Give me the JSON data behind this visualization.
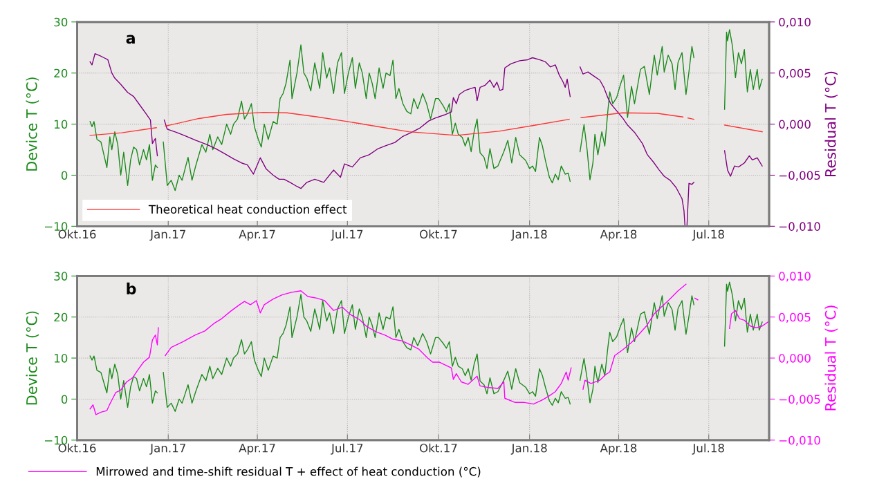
{
  "chart_data": [
    {
      "type": "line",
      "ylabel": "Device T (°C)",
      "y2label": "Residual T (°C)",
      "annotations": [
        "a"
      ],
      "grid": true,
      "legend": "bottom left",
      "marker": "none",
      "line_style": "solid",
      "xlim": [
        "2016-10-01",
        "2018-08-31"
      ],
      "xticks": [
        {
          "value": "2016-10-01",
          "label": "Okt.16"
        },
        {
          "value": "2017-01-01",
          "label": "Jan.17"
        },
        {
          "value": "2017-04-01",
          "label": "Apr.17"
        },
        {
          "value": "2017-07-01",
          "label": "Jul.17"
        },
        {
          "value": "2017-10-01",
          "label": "Okt.17"
        },
        {
          "value": "2018-01-01",
          "label": "Jan.18"
        },
        {
          "value": "2018-04-01",
          "label": "Apr.18"
        },
        {
          "value": "2018-07-01",
          "label": "Jul.18"
        }
      ],
      "ylim": [
        -10,
        30
      ],
      "yticks": [
        {
          "value": -10,
          "label": "−10"
        },
        0,
        10,
        20,
        30
      ],
      "y2lim": [
        -0.01,
        0.01
      ],
      "y2ticks": [
        {
          "value": -0.01,
          "label": "−0,010"
        },
        {
          "value": -0.005,
          "label": "−0,005"
        },
        {
          "value": 0,
          "label": "0,000"
        },
        {
          "value": 0.005,
          "label": "0,005"
        },
        {
          "value": 0.01,
          "label": "0,010"
        }
      ],
      "series": [
        {
          "color": "#1a8a1a",
          "x": [
            "2016-10-14",
            "2016-10-16",
            "2016-10-18",
            "2016-10-21",
            "2016-10-25",
            "2016-10-28",
            "2016-10-31",
            "2016-11-03",
            "2016-11-05",
            "2016-11-08",
            "2016-11-11",
            "2016-11-14",
            "2016-11-17",
            "2016-11-21",
            "2016-11-24",
            "2016-11-27",
            "2016-11-30",
            "2016-12-03",
            "2016-12-07",
            "2016-12-10",
            "2016-12-13",
            "2016-12-16",
            "2016-12-19",
            "2016-12-21",
            "2016-12-24",
            "2016-12-27",
            "2016-12-31",
            "2017-01-04",
            "2017-01-08",
            "2017-01-12",
            "2017-01-15",
            "2017-01-21",
            "2017-01-25",
            "2017-01-29",
            "2017-02-04",
            "2017-02-08",
            "2017-02-12",
            "2017-02-15",
            "2017-02-20",
            "2017-02-24",
            "2017-03-01",
            "2017-03-05",
            "2017-03-08",
            "2017-03-12",
            "2017-03-16",
            "2017-03-19",
            "2017-03-22",
            "2017-03-26",
            "2017-03-29",
            "2017-04-02",
            "2017-04-05",
            "2017-04-08",
            "2017-04-12",
            "2017-04-17",
            "2017-04-21",
            "2017-04-24",
            "2017-04-27",
            "2017-04-30",
            "2017-05-04",
            "2017-05-06",
            "2017-05-11",
            "2017-05-15",
            "2017-05-18",
            "2017-05-21",
            "2017-05-25",
            "2017-05-29",
            "2017-06-03",
            "2017-06-06",
            "2017-06-10",
            "2017-06-13",
            "2017-06-17",
            "2017-06-21",
            "2017-06-25",
            "2017-06-28",
            "2017-07-02",
            "2017-07-06",
            "2017-07-09",
            "2017-07-13",
            "2017-07-16",
            "2017-07-20",
            "2017-07-23",
            "2017-07-26",
            "2017-07-29",
            "2017-08-02",
            "2017-08-06",
            "2017-08-09",
            "2017-08-13",
            "2017-08-16",
            "2017-08-19",
            "2017-08-22",
            "2017-08-26",
            "2017-08-30",
            "2017-09-03",
            "2017-09-06",
            "2017-09-10",
            "2017-09-15",
            "2017-09-19",
            "2017-09-23",
            "2017-09-28",
            "2017-10-01",
            "2017-10-06",
            "2017-10-09",
            "2017-10-12",
            "2017-10-15",
            "2017-10-18",
            "2017-10-21",
            "2017-10-25",
            "2017-10-28",
            "2017-10-31",
            "2017-11-03",
            "2017-11-06",
            "2017-11-09",
            "2017-11-12",
            "2017-11-16",
            "2017-11-19",
            "2017-11-22",
            "2017-11-26",
            "2017-11-30",
            "2017-12-06",
            "2017-12-10",
            "2017-12-14",
            "2017-12-18",
            "2017-12-22",
            "2017-12-28",
            "2018-01-01",
            "2018-01-04",
            "2018-01-07",
            "2018-01-11",
            "2018-01-14",
            "2018-01-17",
            "2018-01-21",
            "2018-01-24",
            "2018-01-27",
            "2018-01-30",
            "2018-02-02",
            "2018-02-06",
            "2018-02-09",
            "2018-02-11",
            "2018-02-16",
            "2018-02-21",
            "2018-02-25",
            "2018-02-28",
            "2018-03-03",
            "2018-03-06",
            "2018-03-08",
            "2018-03-11",
            "2018-03-15",
            "2018-03-18",
            "2018-03-21",
            "2018-03-23",
            "2018-03-26",
            "2018-03-30",
            "2018-04-03",
            "2018-04-06",
            "2018-04-10",
            "2018-04-14",
            "2018-04-17",
            "2018-04-23",
            "2018-04-27",
            "2018-05-02",
            "2018-05-07",
            "2018-05-10",
            "2018-05-15",
            "2018-05-17",
            "2018-05-21",
            "2018-05-25",
            "2018-05-28",
            "2018-05-31",
            "2018-06-04",
            "2018-06-08",
            "2018-06-11",
            "2018-06-14",
            "2018-06-16",
            "2018-07-01",
            "2018-07-17",
            "2018-07-19",
            "2018-07-20",
            "2018-07-22",
            "2018-07-25",
            "2018-07-28",
            "2018-07-31",
            "2018-08-03",
            "2018-08-06",
            "2018-08-09",
            "2018-08-12",
            "2018-08-15",
            "2018-08-19",
            "2018-08-21",
            "2018-08-24"
          ],
          "values": [
            10.5,
            9.5,
            10.5,
            7,
            6.5,
            4,
            1.5,
            7.5,
            5,
            8.5,
            6,
            0,
            4.5,
            -2,
            3,
            5.5,
            5,
            2,
            5,
            3,
            6,
            -1,
            2,
            1.5,
            null,
            6.5,
            -2,
            -1,
            -3,
            0,
            -1,
            3.5,
            -1,
            2,
            6,
            4.5,
            8,
            5,
            7.5,
            6,
            10,
            8,
            10,
            11,
            14.5,
            11,
            12,
            14,
            9.5,
            7,
            5.5,
            10,
            7,
            10.5,
            10,
            15,
            16,
            18,
            22.5,
            15,
            20,
            25.5,
            20,
            19,
            16.5,
            22,
            17,
            24,
            19,
            21,
            16,
            22,
            24,
            16,
            20,
            23,
            17,
            22,
            20,
            15,
            20,
            18,
            15,
            21,
            17,
            20,
            19.5,
            22.5,
            15,
            17,
            14,
            12.5,
            12,
            15,
            13,
            16,
            14,
            11,
            15,
            15,
            13.5,
            12.4,
            14,
            8,
            10.2,
            8,
            7.4,
            5.7,
            7.4,
            4.6,
            8.5,
            11,
            4.4,
            3.5,
            1.3,
            5.2,
            1.3,
            1.8,
            4.6,
            6.8,
            2.4,
            7.4,
            4,
            2.9,
            1.3,
            1.8,
            0.7,
            7.4,
            5.7,
            2.9,
            -0.4,
            -1.5,
            0.2,
            -0.9,
            1.8,
            0.2,
            0.4,
            -1.2,
            null,
            4.6,
            9.9,
            5.2,
            -0.9,
            2.4,
            8,
            4,
            8.5,
            5.7,
            12.4,
            16.3,
            14,
            15.2,
            17.9,
            19.6,
            11.3,
            17.4,
            14,
            20.7,
            21.3,
            15.8,
            23.5,
            19.6,
            25.2,
            20.2,
            23.5,
            21.8,
            16.8,
            22.1,
            24,
            15.8,
            20.2,
            25.2,
            23,
            null,
            12.9,
            28,
            26.3,
            28.5,
            25.2,
            19.1,
            24,
            21.8,
            24.6,
            16.3,
            20.7,
            16.8,
            20.7,
            16.8,
            18.8
          ]
        },
        {
          "color": "#800080",
          "axis": "y2",
          "x": [
            "2016-10-14",
            "2016-10-16",
            "2016-10-19",
            "2016-10-24",
            "2016-10-28",
            "2016-11-01",
            "2016-11-05",
            "2016-11-08",
            "2016-11-14",
            "2016-11-21",
            "2016-11-27",
            "2016-12-03",
            "2016-12-09",
            "2016-12-14",
            "2016-12-16",
            "2016-12-19",
            "2016-12-21",
            "2016-12-24",
            "2016-12-28",
            "2016-12-31",
            "2017-01-09",
            "2017-01-17",
            "2017-01-29",
            "2017-02-09",
            "2017-02-18",
            "2017-02-27",
            "2017-03-08",
            "2017-03-16",
            "2017-03-22",
            "2017-03-28",
            "2017-04-04",
            "2017-04-10",
            "2017-04-17",
            "2017-04-23",
            "2017-04-28",
            "2017-05-04",
            "2017-05-11",
            "2017-05-15",
            "2017-05-21",
            "2017-05-29",
            "2017-06-07",
            "2017-06-17",
            "2017-06-24",
            "2017-06-28",
            "2017-07-06",
            "2017-07-14",
            "2017-07-23",
            "2017-08-01",
            "2017-08-09",
            "2017-08-18",
            "2017-08-26",
            "2017-09-04",
            "2017-09-12",
            "2017-09-21",
            "2017-09-28",
            "2017-10-07",
            "2017-10-14",
            "2017-10-16",
            "2017-10-19",
            "2017-10-22",
            "2017-10-28",
            "2017-11-03",
            "2017-11-07",
            "2017-11-09",
            "2017-11-12",
            "2017-11-17",
            "2017-11-22",
            "2017-11-26",
            "2017-11-29",
            "2017-12-02",
            "2017-12-05",
            "2017-12-07",
            "2017-12-13",
            "2017-12-22",
            "2017-12-30",
            "2018-01-04",
            "2018-01-11",
            "2018-01-17",
            "2018-01-22",
            "2018-01-27",
            "2018-01-31",
            "2018-02-04",
            "2018-02-06",
            "2018-02-08",
            "2018-02-11",
            "2018-02-16",
            "2018-02-21",
            "2018-02-24",
            "2018-03-01",
            "2018-03-07",
            "2018-03-13",
            "2018-03-17",
            "2018-03-21",
            "2018-03-24",
            "2018-03-30",
            "2018-04-05",
            "2018-04-10",
            "2018-04-17",
            "2018-04-25",
            "2018-04-30",
            "2018-05-06",
            "2018-05-12",
            "2018-05-17",
            "2018-05-23",
            "2018-05-29",
            "2018-06-04",
            "2018-06-06",
            "2018-06-07",
            "2018-06-09",
            "2018-06-11",
            "2018-06-14",
            "2018-06-16",
            "2018-07-01",
            "2018-07-17",
            "2018-07-20",
            "2018-07-23",
            "2018-07-27",
            "2018-07-31",
            "2018-08-06",
            "2018-08-11",
            "2018-08-14",
            "2018-08-19",
            "2018-08-24"
          ],
          "values": [
            0.0061,
            0.0058,
            0.0069,
            0.0067,
            0.0065,
            0.0063,
            0.005,
            0.0045,
            0.0039,
            0.0031,
            0.0027,
            0.0019,
            0.0011,
            0.0004,
            -0.0019,
            -0.0014,
            -0.0031,
            null,
            0.0004,
            -0.0005,
            -0.0008,
            -0.0011,
            -0.0016,
            -0.002,
            -0.0024,
            -0.0029,
            -0.0034,
            -0.0038,
            -0.004,
            -0.0049,
            -0.0033,
            -0.0044,
            -0.005,
            -0.0054,
            -0.0054,
            -0.0057,
            -0.0061,
            -0.0063,
            -0.0057,
            -0.0054,
            -0.0057,
            -0.0045,
            -0.0052,
            -0.0039,
            -0.0042,
            -0.0033,
            -0.003,
            -0.0024,
            -0.0021,
            -0.0018,
            -0.0012,
            -0.0008,
            -0.0004,
            0.0003,
            0.0006,
            0.0009,
            0.0012,
            0.0026,
            0.002,
            0.0029,
            0.0033,
            0.0035,
            0.0036,
            0.0023,
            0.0036,
            0.0038,
            0.0043,
            0.0036,
            0.0041,
            0.0033,
            0.0034,
            0.0055,
            0.0059,
            0.0062,
            0.0063,
            0.0065,
            0.0063,
            0.0061,
            0.0056,
            0.0058,
            0.0048,
            0.0041,
            0.0036,
            0.0044,
            0.0027,
            null,
            0.0056,
            0.0049,
            0.0051,
            0.0047,
            0.0043,
            0.0036,
            0.0026,
            0.002,
            0.0013,
            0.0006,
            -0.0001,
            -0.0008,
            -0.0019,
            -0.003,
            -0.0037,
            -0.0045,
            -0.0051,
            -0.0055,
            -0.0062,
            -0.0073,
            -0.0085,
            -0.01,
            -0.01,
            -0.0058,
            -0.0059,
            -0.0057,
            null,
            -0.0026,
            -0.0045,
            -0.0051,
            -0.0041,
            -0.0042,
            -0.0038,
            -0.0031,
            -0.0035,
            -0.0033,
            -0.0041
          ]
        },
        {
          "name": "Theoretical heat conduction effect",
          "color": "#ff3333",
          "axis": "y2",
          "x": [
            "2016-10-14",
            "2016-11-15",
            "2016-12-20",
            "2016-12-24",
            "2016-12-29",
            "2017-02-01",
            "2017-03-01",
            "2017-04-07",
            "2017-05-01",
            "2017-06-01",
            "2017-07-01",
            "2017-08-01",
            "2017-09-01",
            "2017-10-19",
            "2017-12-01",
            "2018-01-01",
            "2018-02-10",
            "2018-02-16",
            "2018-02-22",
            "2018-04-05",
            "2018-05-10",
            "2018-06-05",
            "2018-06-07",
            "2018-06-10",
            "2018-06-16",
            "2018-07-01",
            "2018-07-17",
            "2018-08-24"
          ],
          "values": [
            -0.0011,
            -0.00085,
            -0.00035,
            null,
            -0.0002,
            0.00055,
            0.00095,
            0.00115,
            0.0011,
            0.0007,
            0.00025,
            -0.00025,
            -0.00075,
            -0.0011,
            -0.0007,
            -0.0002,
            0.00047,
            null,
            0.00064,
            0.0011,
            0.00105,
            0.0007,
            null,
            0.0006,
            0.00047,
            null,
            -0.0001,
            -0.00075
          ]
        }
      ]
    },
    {
      "type": "line",
      "ylabel": "Device T (°C)",
      "y2label": "Residual T (°C)",
      "annotations": [
        "b"
      ],
      "grid": true,
      "legend": "bottom",
      "marker": "none",
      "line_style": "solid",
      "xlim": [
        "2016-10-01",
        "2018-08-31"
      ],
      "xticks": [
        {
          "value": "2016-10-01",
          "label": "Okt.16"
        },
        {
          "value": "2017-01-01",
          "label": "Jan.17"
        },
        {
          "value": "2017-04-01",
          "label": "Apr.17"
        },
        {
          "value": "2017-07-01",
          "label": "Jul.17"
        },
        {
          "value": "2017-10-01",
          "label": "Okt.17"
        },
        {
          "value": "2018-01-01",
          "label": "Jan.18"
        },
        {
          "value": "2018-04-01",
          "label": "Apr.18"
        },
        {
          "value": "2018-07-01",
          "label": "Jul.18"
        }
      ],
      "ylim": [
        -10,
        30
      ],
      "yticks": [
        {
          "value": -10,
          "label": "−10"
        },
        0,
        10,
        20,
        30
      ],
      "y2lim": [
        -0.01,
        0.01
      ],
      "y2ticks": [
        {
          "value": -0.01,
          "label": "−0,010"
        },
        {
          "value": -0.005,
          "label": "−0,005"
        },
        {
          "value": 0,
          "label": "0,000"
        },
        {
          "value": 0.005,
          "label": "0,005"
        },
        {
          "value": 0.01,
          "label": "0,010"
        }
      ],
      "series": [
        {
          "color": "#1a8a1a",
          "x": [
            "2016-10-14",
            "2016-10-16",
            "2016-10-18",
            "2016-10-21",
            "2016-10-25",
            "2016-10-28",
            "2016-10-31",
            "2016-11-03",
            "2016-11-05",
            "2016-11-08",
            "2016-11-11",
            "2016-11-14",
            "2016-11-17",
            "2016-11-21",
            "2016-11-24",
            "2016-11-27",
            "2016-11-30",
            "2016-12-03",
            "2016-12-07",
            "2016-12-10",
            "2016-12-13",
            "2016-12-16",
            "2016-12-19",
            "2016-12-21",
            "2016-12-24",
            "2016-12-27",
            "2016-12-31",
            "2017-01-04",
            "2017-01-08",
            "2017-01-12",
            "2017-01-15",
            "2017-01-21",
            "2017-01-25",
            "2017-01-29",
            "2017-02-04",
            "2017-02-08",
            "2017-02-12",
            "2017-02-15",
            "2017-02-20",
            "2017-02-24",
            "2017-03-01",
            "2017-03-05",
            "2017-03-08",
            "2017-03-12",
            "2017-03-16",
            "2017-03-19",
            "2017-03-22",
            "2017-03-26",
            "2017-03-29",
            "2017-04-02",
            "2017-04-05",
            "2017-04-08",
            "2017-04-12",
            "2017-04-17",
            "2017-04-21",
            "2017-04-24",
            "2017-04-27",
            "2017-04-30",
            "2017-05-04",
            "2017-05-06",
            "2017-05-11",
            "2017-05-15",
            "2017-05-18",
            "2017-05-21",
            "2017-05-25",
            "2017-05-29",
            "2017-06-03",
            "2017-06-06",
            "2017-06-10",
            "2017-06-13",
            "2017-06-17",
            "2017-06-21",
            "2017-06-25",
            "2017-06-28",
            "2017-07-02",
            "2017-07-06",
            "2017-07-09",
            "2017-07-13",
            "2017-07-16",
            "2017-07-20",
            "2017-07-23",
            "2017-07-26",
            "2017-07-29",
            "2017-08-02",
            "2017-08-06",
            "2017-08-09",
            "2017-08-13",
            "2017-08-16",
            "2017-08-19",
            "2017-08-22",
            "2017-08-26",
            "2017-08-30",
            "2017-09-03",
            "2017-09-06",
            "2017-09-10",
            "2017-09-15",
            "2017-09-19",
            "2017-09-23",
            "2017-09-28",
            "2017-10-01",
            "2017-10-06",
            "2017-10-09",
            "2017-10-12",
            "2017-10-15",
            "2017-10-18",
            "2017-10-21",
            "2017-10-25",
            "2017-10-28",
            "2017-10-31",
            "2017-11-03",
            "2017-11-06",
            "2017-11-09",
            "2017-11-12",
            "2017-11-16",
            "2017-11-19",
            "2017-11-22",
            "2017-11-26",
            "2017-11-30",
            "2017-12-06",
            "2017-12-10",
            "2017-12-14",
            "2017-12-18",
            "2017-12-22",
            "2017-12-28",
            "2018-01-01",
            "2018-01-04",
            "2018-01-07",
            "2018-01-11",
            "2018-01-14",
            "2018-01-17",
            "2018-01-21",
            "2018-01-24",
            "2018-01-27",
            "2018-01-30",
            "2018-02-02",
            "2018-02-06",
            "2018-02-09",
            "2018-02-11",
            "2018-02-16",
            "2018-02-21",
            "2018-02-25",
            "2018-02-28",
            "2018-03-03",
            "2018-03-06",
            "2018-03-08",
            "2018-03-11",
            "2018-03-15",
            "2018-03-18",
            "2018-03-21",
            "2018-03-23",
            "2018-03-26",
            "2018-03-30",
            "2018-04-03",
            "2018-04-06",
            "2018-04-10",
            "2018-04-14",
            "2018-04-17",
            "2018-04-23",
            "2018-04-27",
            "2018-05-02",
            "2018-05-07",
            "2018-05-10",
            "2018-05-15",
            "2018-05-17",
            "2018-05-21",
            "2018-05-25",
            "2018-05-28",
            "2018-05-31",
            "2018-06-04",
            "2018-06-08",
            "2018-06-11",
            "2018-06-14",
            "2018-06-16",
            "2018-07-01",
            "2018-07-17",
            "2018-07-19",
            "2018-07-20",
            "2018-07-22",
            "2018-07-25",
            "2018-07-28",
            "2018-07-31",
            "2018-08-03",
            "2018-08-06",
            "2018-08-09",
            "2018-08-12",
            "2018-08-15",
            "2018-08-19",
            "2018-08-21",
            "2018-08-24"
          ],
          "values": [
            10.5,
            9.5,
            10.5,
            7,
            6.5,
            4,
            1.5,
            7.5,
            5,
            8.5,
            6,
            0,
            4.5,
            -2,
            3,
            5.5,
            5,
            2,
            5,
            3,
            6,
            -1,
            2,
            1.5,
            null,
            6.5,
            -2,
            -1,
            -3,
            0,
            -1,
            3.5,
            -1,
            2,
            6,
            4.5,
            8,
            5,
            7.5,
            6,
            10,
            8,
            10,
            11,
            14.5,
            11,
            12,
            14,
            9.5,
            7,
            5.5,
            10,
            7,
            10.5,
            10,
            15,
            16,
            18,
            22.5,
            15,
            20,
            25.5,
            20,
            19,
            16.5,
            22,
            17,
            24,
            19,
            21,
            16,
            22,
            24,
            16,
            20,
            23,
            17,
            22,
            20,
            15,
            20,
            18,
            15,
            21,
            17,
            20,
            19.5,
            22.5,
            15,
            17,
            14,
            12.5,
            12,
            15,
            13,
            16,
            14,
            11,
            15,
            15,
            13.5,
            12.4,
            14,
            8,
            10.2,
            8,
            7.4,
            5.7,
            7.4,
            4.6,
            8.5,
            11,
            4.4,
            3.5,
            1.3,
            5.2,
            1.3,
            1.8,
            4.6,
            6.8,
            2.4,
            7.4,
            4,
            2.9,
            1.3,
            1.8,
            0.7,
            7.4,
            5.7,
            2.9,
            -0.4,
            -1.5,
            0.2,
            -0.9,
            1.8,
            0.2,
            0.4,
            -1.2,
            null,
            4.6,
            9.9,
            5.2,
            -0.9,
            2.4,
            8,
            4,
            8.5,
            5.7,
            12.4,
            16.3,
            14,
            15.2,
            17.9,
            19.6,
            11.3,
            17.4,
            14,
            20.7,
            21.3,
            15.8,
            23.5,
            19.6,
            25.2,
            20.2,
            23.5,
            21.8,
            16.8,
            22.1,
            24,
            15.8,
            20.2,
            25.2,
            23,
            null,
            12.9,
            28,
            26.3,
            28.5,
            25.2,
            19.1,
            24,
            21.8,
            24.6,
            16.3,
            20.7,
            16.8,
            20.7,
            16.8,
            18.8
          ]
        },
        {
          "name": "Mirrowed and time-shift residual T + effect of heat conduction (°C)",
          "color": "#ff00ff",
          "axis": "y2",
          "x": [
            "2016-10-14",
            "2016-10-17",
            "2016-10-20",
            "2016-10-25",
            "2016-10-31",
            "2016-11-03",
            "2016-11-06",
            "2016-11-09",
            "2016-11-14",
            "2016-11-20",
            "2016-11-26",
            "2016-12-01",
            "2016-12-07",
            "2016-12-13",
            "2016-12-16",
            "2016-12-19",
            "2016-12-21",
            "2016-12-22",
            "2016-12-25",
            "2016-12-29",
            "2017-01-04",
            "2017-01-16",
            "2017-01-28",
            "2017-02-07",
            "2017-02-16",
            "2017-02-24",
            "2017-03-05",
            "2017-03-14",
            "2017-03-19",
            "2017-03-25",
            "2017-03-31",
            "2017-04-04",
            "2017-04-08",
            "2017-04-17",
            "2017-04-26",
            "2017-05-05",
            "2017-05-15",
            "2017-05-22",
            "2017-05-31",
            "2017-06-08",
            "2017-06-17",
            "2017-06-26",
            "2017-07-04",
            "2017-07-13",
            "2017-07-21",
            "2017-07-30",
            "2017-08-08",
            "2017-08-16",
            "2017-08-25",
            "2017-09-03",
            "2017-09-11",
            "2017-09-20",
            "2017-09-25",
            "2017-10-02",
            "2017-10-14",
            "2017-10-16",
            "2017-10-19",
            "2017-10-24",
            "2017-10-31",
            "2017-11-09",
            "2017-11-12",
            "2017-11-21",
            "2017-11-30",
            "2017-12-06",
            "2017-12-07",
            "2017-12-17",
            "2017-12-26",
            "2018-01-05",
            "2018-01-14",
            "2018-01-21",
            "2018-01-27",
            "2018-02-02",
            "2018-02-07",
            "2018-02-09",
            "2018-02-12",
            "2018-02-18",
            "2018-02-24",
            "2018-02-26",
            "2018-03-04",
            "2018-03-13",
            "2018-03-19",
            "2018-03-23",
            "2018-03-28",
            "2018-04-05",
            "2018-04-14",
            "2018-04-20",
            "2018-04-29",
            "2018-05-07",
            "2018-05-13",
            "2018-05-22",
            "2018-05-31",
            "2018-06-08",
            "2018-06-12",
            "2018-06-17",
            "2018-06-20",
            "2018-07-05",
            "2018-07-22",
            "2018-07-24",
            "2018-07-28",
            "2018-08-01",
            "2018-08-06",
            "2018-08-12",
            "2018-08-18",
            "2018-08-24",
            "2018-08-30"
          ],
          "values": [
            -0.0062,
            -0.0057,
            -0.0069,
            -0.0066,
            -0.0064,
            -0.0056,
            -0.0049,
            -0.0042,
            -0.0039,
            -0.0029,
            -0.0024,
            -0.0015,
            -0.0005,
            0.0001,
            0.0022,
            0.0028,
            0.0016,
            0.0037,
            null,
            0.0003,
            0.0013,
            0.002,
            0.0028,
            0.0033,
            0.0042,
            0.0048,
            0.0057,
            0.0065,
            0.0069,
            0.0065,
            0.007,
            0.0055,
            0.0065,
            0.0072,
            0.0077,
            0.008,
            0.0082,
            0.0075,
            0.0073,
            0.007,
            0.0058,
            0.0062,
            0.0053,
            0.0047,
            0.0038,
            0.0032,
            0.0028,
            0.0023,
            0.0021,
            0.0016,
            0.0011,
            0,
            -0.0005,
            -0.0005,
            -0.0012,
            -0.0026,
            -0.0019,
            -0.0029,
            -0.0032,
            -0.0022,
            -0.0034,
            -0.0036,
            -0.0037,
            -0.0029,
            -0.0049,
            -0.0054,
            -0.0054,
            -0.0056,
            -0.0051,
            -0.0046,
            -0.0041,
            -0.0031,
            -0.0017,
            -0.0027,
            -0.0012,
            null,
            -0.0038,
            -0.0027,
            -0.0031,
            -0.0027,
            -0.002,
            -0.0017,
            0.0003,
            0.001,
            0.0019,
            0.0027,
            0.0039,
            0.0054,
            0.0061,
            0.0071,
            0.0082,
            0.009,
            null,
            0.0073,
            0.0071,
            null,
            0.0036,
            0.0054,
            0.0058,
            0.0048,
            0.0046,
            0.0039,
            0.0037,
            0.0039,
            0.0044
          ]
        }
      ]
    }
  ]
}
